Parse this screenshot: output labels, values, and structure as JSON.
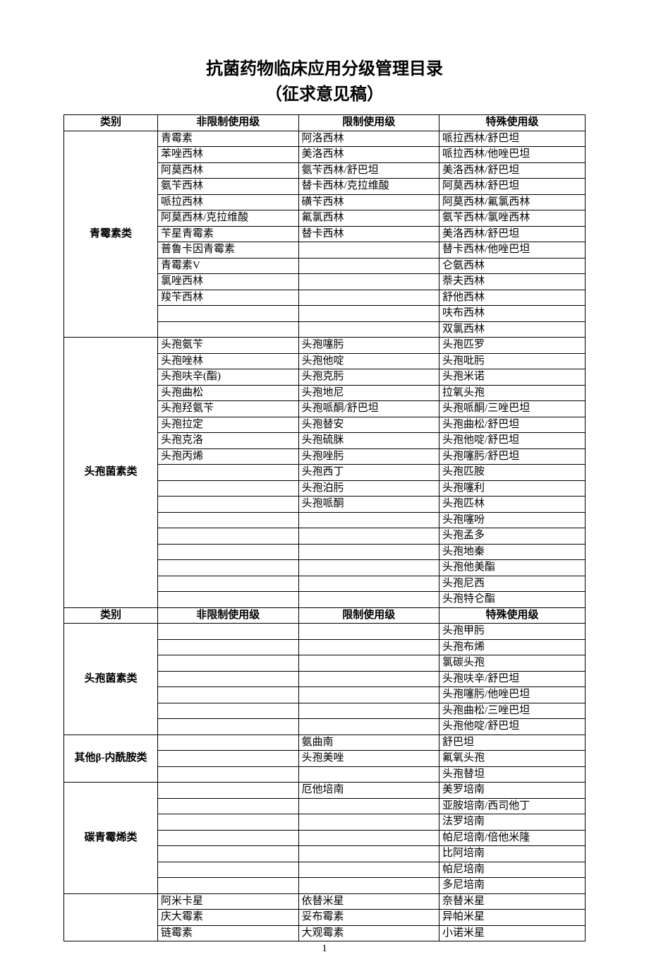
{
  "title": "抗菌药物临床应用分级管理目录",
  "subtitle": "（征求意见稿）",
  "pageNumber": "1",
  "headers": {
    "category": "类别",
    "unrestricted": "非限制使用级",
    "restricted": "限制使用级",
    "special": "特殊使用级"
  },
  "sections": [
    {
      "category": "青霉素类",
      "rows": [
        [
          "青霉素",
          "阿洛西林",
          "哌拉西林/舒巴坦"
        ],
        [
          "苯唑西林",
          "美洛西林",
          "哌拉西林/他唑巴坦"
        ],
        [
          "阿莫西林",
          "氨苄西林/舒巴坦",
          "美洛西林/舒巴坦"
        ],
        [
          "氨苄西林",
          "替卡西林/克拉维酸",
          "阿莫西林/舒巴坦"
        ],
        [
          "哌拉西林",
          "磺苄西林",
          "阿莫西林/氟氯西林"
        ],
        [
          "阿莫西林/克拉维酸",
          "氟氯西林",
          "氨苄西林/氯唑西林"
        ],
        [
          "苄星青霉素",
          "替卡西林",
          "美洛西林/舒巴坦"
        ],
        [
          "普鲁卡因青霉素",
          "",
          "替卡西林/他唑巴坦"
        ],
        [
          "青霉素V",
          "",
          "仑氨西林"
        ],
        [
          "氯唑西林",
          "",
          "萘夫西林"
        ],
        [
          "羧苄西林",
          "",
          "舒他西林"
        ],
        [
          "",
          "",
          "呋布西林"
        ],
        [
          "",
          "",
          "双氯西林"
        ]
      ]
    },
    {
      "category": "头孢菌素类",
      "rows": [
        [
          "头孢氨苄",
          "头孢噻肟",
          "头孢匹罗"
        ],
        [
          "头孢唑林",
          "头孢他啶",
          "头孢吡肟"
        ],
        [
          "头孢呋辛(酯)",
          "头孢克肟",
          "头孢米诺"
        ],
        [
          "头孢曲松",
          "头孢地尼",
          "拉氧头孢"
        ],
        [
          "头孢羟氨苄",
          "头孢哌酮/舒巴坦",
          "头孢哌酮/三唑巴坦"
        ],
        [
          "头孢拉定",
          "头孢替安",
          "头孢曲松/舒巴坦"
        ],
        [
          "头孢克洛",
          "头孢硫脒",
          "头孢他啶/舒巴坦"
        ],
        [
          "头孢丙烯",
          "头孢唑肟",
          "头孢噻肟/舒巴坦"
        ],
        [
          "",
          "头孢西丁",
          "头孢匹胺"
        ],
        [
          "",
          "头孢泊肟",
          "头孢噻利"
        ],
        [
          "",
          "头孢哌酮",
          "头孢匹林"
        ],
        [
          "",
          "",
          "头孢噻吩"
        ],
        [
          "",
          "",
          "头孢孟多"
        ],
        [
          "",
          "",
          "头孢地秦"
        ],
        [
          "",
          "",
          "头孢他美酯"
        ],
        [
          "",
          "",
          "头孢尼西"
        ],
        [
          "",
          "",
          "头孢特仑酯"
        ]
      ]
    }
  ],
  "afterRepeat": [
    {
      "category": "头孢菌素类",
      "rows": [
        [
          "",
          "",
          "头孢甲肟"
        ],
        [
          "",
          "",
          "头孢布烯"
        ],
        [
          "",
          "",
          "氯碳头孢"
        ],
        [
          "",
          "",
          "头孢呋辛/舒巴坦"
        ],
        [
          "",
          "",
          "头孢噻肟/他唑巴坦"
        ],
        [
          "",
          "",
          "头孢曲松/三唑巴坦"
        ],
        [
          "",
          "",
          "头孢他啶/舒巴坦"
        ]
      ]
    },
    {
      "category": "其他β-内酰胺类",
      "rows": [
        [
          "",
          "氨曲南",
          "舒巴坦"
        ],
        [
          "",
          "头孢美唑",
          "氟氧头孢"
        ],
        [
          "",
          "",
          "头孢替坦"
        ]
      ]
    },
    {
      "category": "碳青霉烯类",
      "rows": [
        [
          "",
          "厄他培南",
          "美罗培南"
        ],
        [
          "",
          "",
          "亚胺培南/西司他丁"
        ],
        [
          "",
          "",
          "法罗培南"
        ],
        [
          "",
          "",
          "帕尼培南/倍他米隆"
        ],
        [
          "",
          "",
          "比阿培南"
        ],
        [
          "",
          "",
          "帕尼培南"
        ],
        [
          "",
          "",
          "多尼培南"
        ]
      ]
    },
    {
      "category": "",
      "noCategory": true,
      "rows": [
        [
          "阿米卡星",
          "依替米星",
          "奈替米星"
        ],
        [
          "庆大霉素",
          "妥布霉素",
          "异帕米星"
        ],
        [
          "链霉素",
          "大观霉素",
          "小诺米星"
        ]
      ]
    }
  ]
}
